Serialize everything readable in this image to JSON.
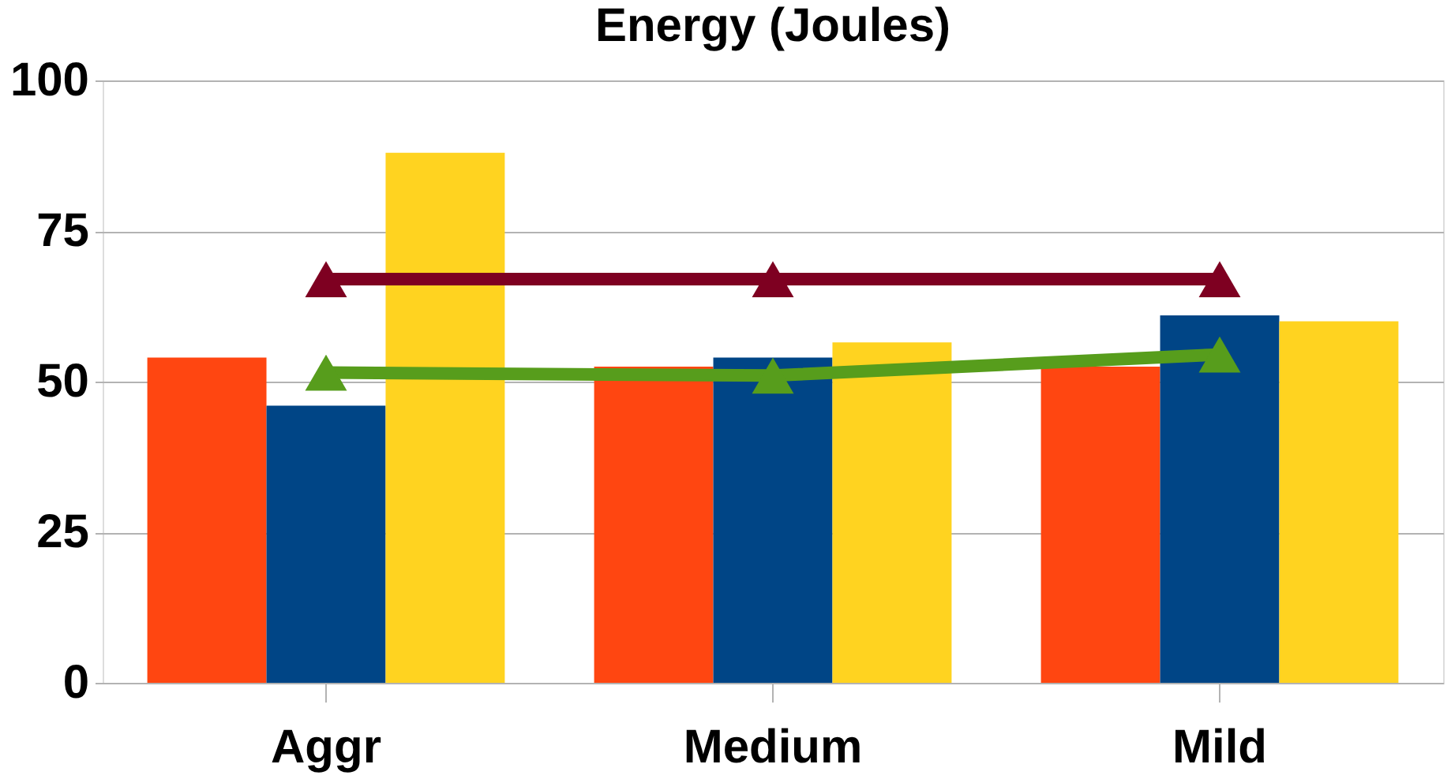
{
  "chart_data": {
    "type": "bar",
    "title": "Energy (Joules)",
    "categories": [
      "Aggr",
      "Medium",
      "Mild"
    ],
    "series": [
      {
        "color": "#ff4611",
        "values": [
          54,
          52.5,
          52.5
        ]
      },
      {
        "color": "#004586",
        "values": [
          46,
          54,
          61
        ]
      },
      {
        "color": "#ffd320",
        "values": [
          88,
          56.5,
          60
        ]
      },
      {
        "type": "line",
        "color": "#7e0021",
        "values": [
          67,
          67,
          67
        ],
        "marker": "triangle"
      },
      {
        "type": "line",
        "color": "#579d1c",
        "values": [
          51.5,
          51,
          54.5
        ],
        "marker": "triangle"
      }
    ],
    "ylim": [
      0,
      100
    ],
    "yticks": [
      0,
      25,
      50,
      75,
      100
    ],
    "grid": "y"
  }
}
